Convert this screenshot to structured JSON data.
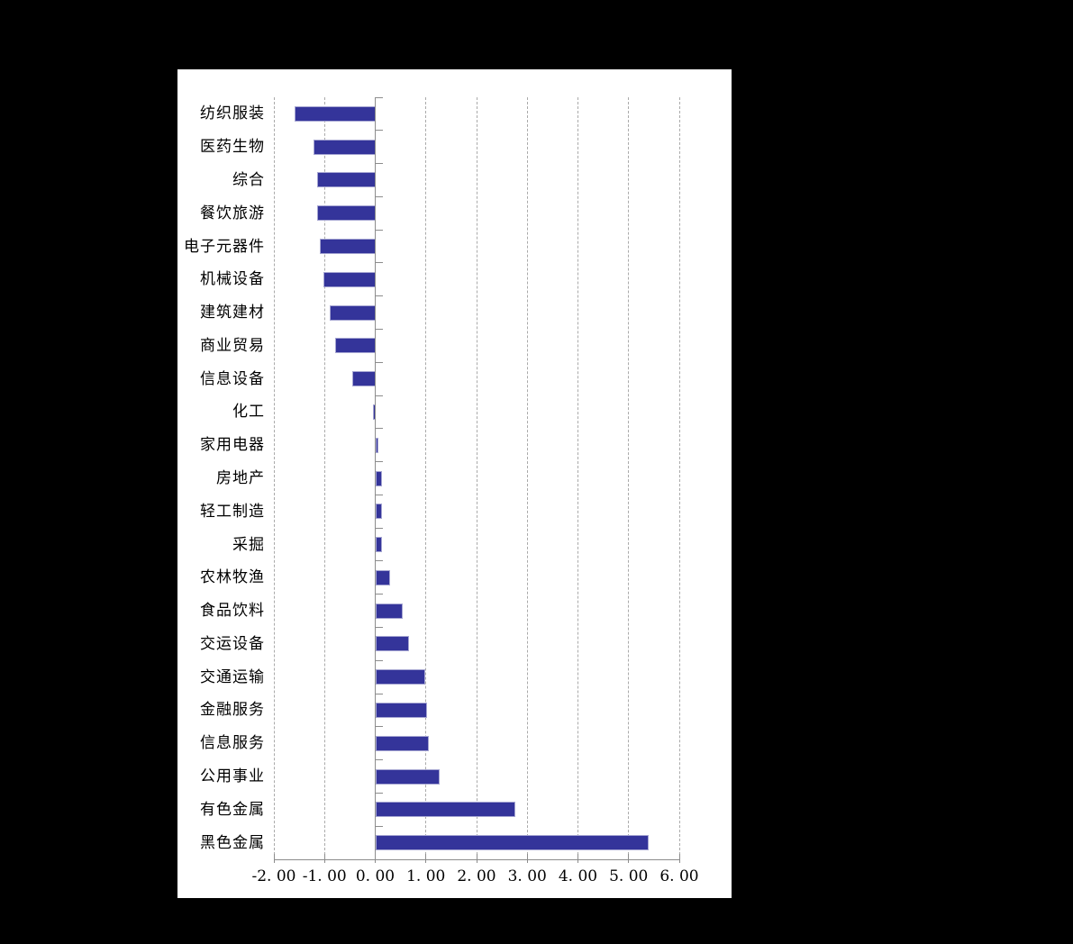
{
  "page": {
    "background_color": "#000000",
    "panel_color": "#FFFFFF",
    "title": ""
  },
  "chart_data": {
    "type": "bar",
    "orientation": "horizontal",
    "title": "",
    "xlabel": "",
    "ylabel": "",
    "legend": null,
    "grid": "vertical-dashed",
    "xlim": [
      -2.0,
      6.0
    ],
    "x_ticks": [
      -2,
      -1,
      0,
      1,
      2,
      3,
      4,
      5,
      6
    ],
    "x_tick_labels": [
      "-2. 00",
      "-1. 00",
      "0. 00",
      "1. 00",
      "2. 00",
      "3. 00",
      "4. 00",
      "5. 00",
      "6. 00"
    ],
    "categories": [
      "纺织服装",
      "医药生物",
      "综合",
      "餐饮旅游",
      "电子元器件",
      "机械设备",
      "建筑建材",
      "商业贸易",
      "信息设备",
      "化工",
      "家用电器",
      "房地产",
      "轻工制造",
      "采掘",
      "农林牧渔",
      "食品饮料",
      "交运设备",
      "交通运输",
      "金融服务",
      "信息服务",
      "公用事业",
      "有色金属",
      "黑色金属"
    ],
    "values": [
      -1.6,
      -1.21,
      -1.15,
      -1.15,
      -1.09,
      -1.03,
      -0.9,
      -0.79,
      -0.46,
      -0.05,
      0.06,
      0.14,
      0.14,
      0.13,
      0.29,
      0.54,
      0.67,
      0.98,
      1.02,
      1.05,
      1.27,
      2.76,
      5.4
    ],
    "bar_color": "#34349A",
    "bar_border_color": "#A6A6D2",
    "gridline_color": "#AAAAAA",
    "axis_color": "#8C8C8C",
    "text_color": "#000000"
  }
}
